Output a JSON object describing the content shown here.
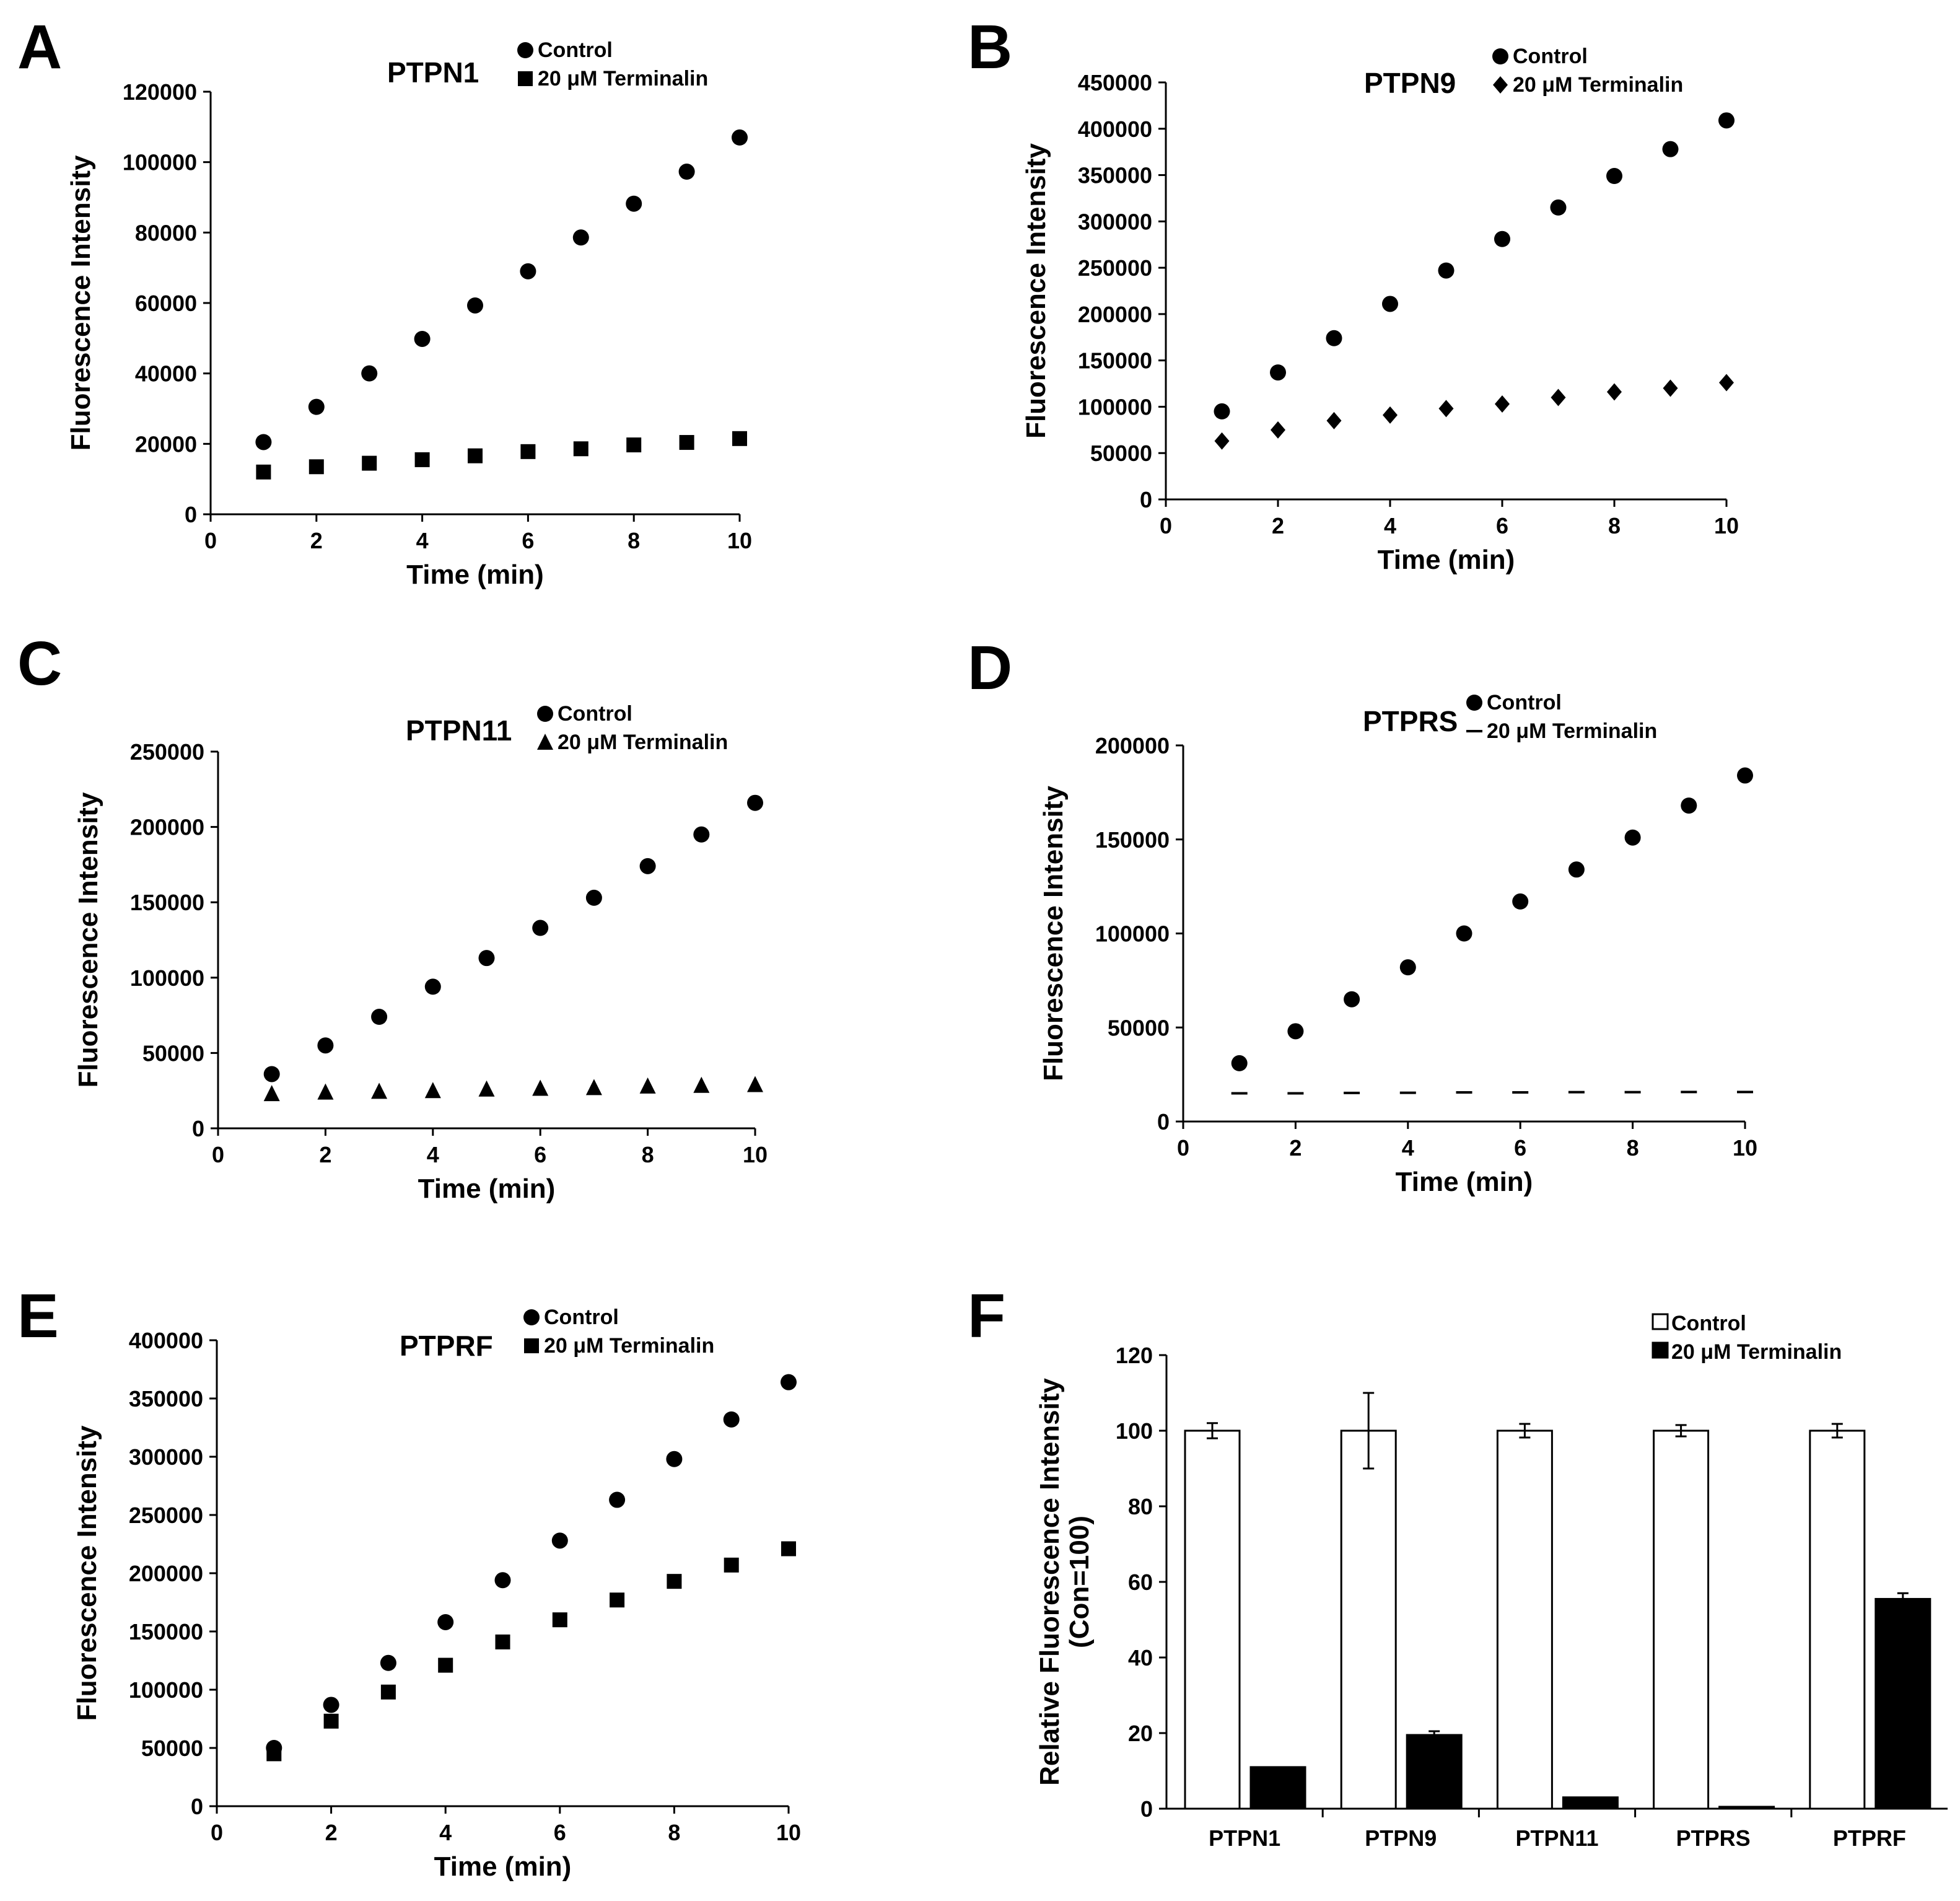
{
  "chart_data": [
    {
      "panel": "A",
      "type": "scatter",
      "title": "PTPN1",
      "xlabel": "Time (min)",
      "ylabel": "Fluorescence Intensity",
      "xlim": [
        0,
        10
      ],
      "ylim": [
        0,
        120000
      ],
      "xticks": [
        0,
        2,
        4,
        6,
        8,
        10
      ],
      "yticks": [
        0,
        20000,
        40000,
        60000,
        80000,
        100000,
        120000
      ],
      "legend_position": "top-right",
      "grid": false,
      "series": [
        {
          "name": "Control",
          "marker": "circle",
          "x": [
            1,
            2,
            3,
            4,
            5,
            6,
            7,
            8,
            9,
            10
          ],
          "y": [
            20500,
            30500,
            40000,
            49800,
            59300,
            69000,
            78600,
            88200,
            97300,
            107000
          ]
        },
        {
          "name": "20 μM Terminalin",
          "marker": "square",
          "x": [
            1,
            2,
            3,
            4,
            5,
            6,
            7,
            8,
            9,
            10
          ],
          "y": [
            12000,
            13500,
            14500,
            15500,
            16600,
            17800,
            18600,
            19700,
            20400,
            21500
          ]
        }
      ]
    },
    {
      "panel": "B",
      "type": "scatter",
      "title": "PTPN9",
      "xlabel": "Time (min)",
      "ylabel": "Fluorescence Intensity",
      "xlim": [
        0,
        10
      ],
      "ylim": [
        0,
        450000
      ],
      "xticks": [
        0,
        2,
        4,
        6,
        8,
        10
      ],
      "yticks": [
        0,
        50000,
        100000,
        150000,
        200000,
        250000,
        300000,
        350000,
        400000,
        450000
      ],
      "legend_position": "top-right",
      "grid": false,
      "series": [
        {
          "name": "Control",
          "marker": "circle",
          "x": [
            1,
            2,
            3,
            4,
            5,
            6,
            7,
            8,
            9,
            10
          ],
          "y": [
            95000,
            137000,
            174000,
            211000,
            247000,
            281000,
            315000,
            349000,
            378000,
            409000
          ]
        },
        {
          "name": "20 μM Terminalin",
          "marker": "diamond",
          "x": [
            1,
            2,
            3,
            4,
            5,
            6,
            7,
            8,
            9,
            10
          ],
          "y": [
            63000,
            75000,
            85000,
            91000,
            98000,
            103000,
            110000,
            116000,
            120000,
            126000
          ]
        }
      ]
    },
    {
      "panel": "C",
      "type": "scatter",
      "title": "PTPN11",
      "xlabel": "Time (min)",
      "ylabel": "Fluorescence Intensity",
      "xlim": [
        0,
        10
      ],
      "ylim": [
        0,
        250000
      ],
      "xticks": [
        0,
        2,
        4,
        6,
        8,
        10
      ],
      "yticks": [
        0,
        50000,
        100000,
        150000,
        200000,
        250000
      ],
      "legend_position": "top-right",
      "grid": false,
      "series": [
        {
          "name": "Control",
          "marker": "circle",
          "x": [
            1,
            2,
            3,
            4,
            5,
            6,
            7,
            8,
            9,
            10
          ],
          "y": [
            36000,
            55000,
            74000,
            94000,
            113000,
            133000,
            153000,
            174000,
            195000,
            216000
          ]
        },
        {
          "name": "20 μM Terminalin",
          "marker": "triangle",
          "x": [
            1,
            2,
            3,
            4,
            5,
            6,
            7,
            8,
            9,
            10
          ],
          "y": [
            23000,
            24000,
            24500,
            25000,
            26000,
            26500,
            27000,
            28000,
            28500,
            29000
          ]
        }
      ]
    },
    {
      "panel": "D",
      "type": "scatter",
      "title": "PTPRS",
      "xlabel": "Time (min)",
      "ylabel": "Fluorescence Intensity",
      "xlim": [
        0,
        10
      ],
      "ylim": [
        0,
        200000
      ],
      "xticks": [
        0,
        2,
        4,
        6,
        8,
        10
      ],
      "yticks": [
        0,
        50000,
        100000,
        150000,
        200000
      ],
      "legend_position": "top-right",
      "grid": false,
      "series": [
        {
          "name": "Control",
          "marker": "circle",
          "x": [
            1,
            2,
            3,
            4,
            5,
            6,
            7,
            8,
            9,
            10
          ],
          "y": [
            31000,
            48000,
            65000,
            82000,
            100000,
            117000,
            134000,
            151000,
            168000,
            184000
          ]
        },
        {
          "name": "20 μM Terminalin",
          "marker": "dash",
          "x": [
            1,
            2,
            3,
            4,
            5,
            6,
            7,
            8,
            9,
            10
          ],
          "y": [
            15000,
            15000,
            15200,
            15300,
            15500,
            15500,
            15600,
            15600,
            15700,
            15700
          ]
        }
      ]
    },
    {
      "panel": "E",
      "type": "scatter",
      "title": "PTPRF",
      "xlabel": "Time (min)",
      "ylabel": "Fluorescence Intensity",
      "xlim": [
        0,
        10
      ],
      "ylim": [
        0,
        400000
      ],
      "xticks": [
        0,
        2,
        4,
        6,
        8,
        10
      ],
      "yticks": [
        0,
        50000,
        100000,
        150000,
        200000,
        250000,
        300000,
        350000,
        400000
      ],
      "legend_position": "top-right",
      "grid": false,
      "series": [
        {
          "name": "Control",
          "marker": "circle",
          "x": [
            1,
            2,
            3,
            4,
            5,
            6,
            7,
            8,
            9,
            10
          ],
          "y": [
            50000,
            87000,
            123000,
            158000,
            194000,
            228000,
            263000,
            298000,
            332000,
            364000
          ]
        },
        {
          "name": "20 μM Terminalin",
          "marker": "square",
          "x": [
            1,
            2,
            3,
            4,
            5,
            6,
            7,
            8,
            9,
            10
          ],
          "y": [
            45000,
            73000,
            98000,
            121000,
            141000,
            160000,
            177000,
            193000,
            207000,
            221000
          ]
        }
      ]
    },
    {
      "panel": "F",
      "type": "bar",
      "title": "",
      "xlabel": "",
      "ylabel": "Relative Fluorescence Intensity\n(Con=100)",
      "categories": [
        "PTPN1",
        "PTPN9",
        "PTPN11",
        "PTPRS",
        "PTPRF"
      ],
      "ylim": [
        0,
        120
      ],
      "yticks": [
        0,
        20,
        40,
        60,
        80,
        100,
        120
      ],
      "legend_position": "top-right",
      "grid": false,
      "series": [
        {
          "name": "Control",
          "fill": "#ffffff",
          "values": [
            100,
            100,
            100,
            100,
            100
          ],
          "errors": [
            2,
            10,
            1.8,
            1.5,
            1.8
          ]
        },
        {
          "name": "20 μM Terminalin",
          "fill": "#000000",
          "values": [
            11,
            19.5,
            3,
            0.5,
            55.5
          ],
          "errors": [
            0,
            1,
            0,
            0,
            1.5
          ]
        }
      ]
    }
  ]
}
